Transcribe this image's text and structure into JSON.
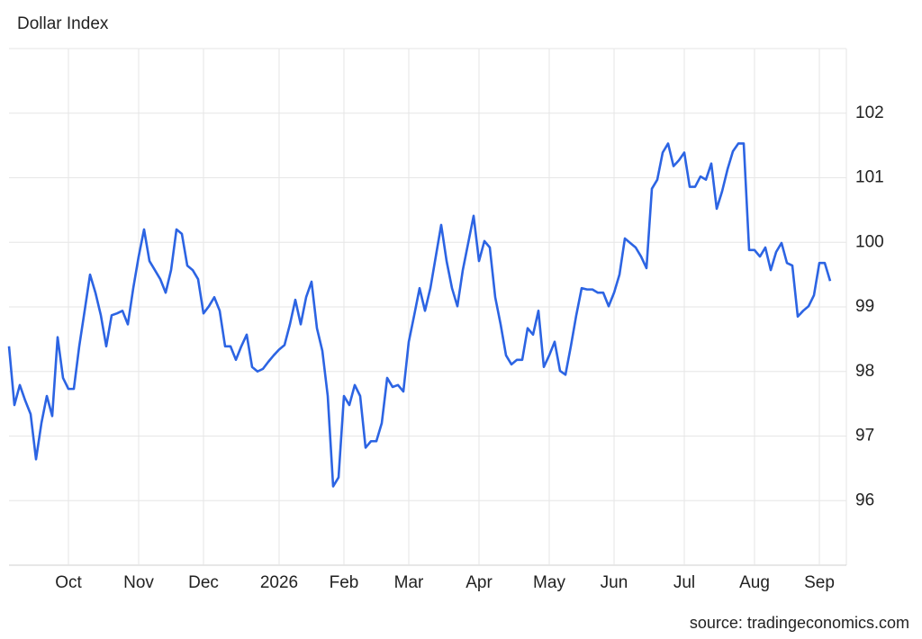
{
  "chart_data": {
    "type": "line",
    "title": "Dollar Index",
    "source": "source: tradingeconomics.com",
    "categories": [
      null,
      null,
      null,
      null,
      null,
      null,
      null,
      null,
      null,
      null,
      null,
      "Oct",
      null,
      null,
      null,
      null,
      null,
      null,
      null,
      null,
      null,
      null,
      null,
      null,
      "Nov",
      null,
      null,
      null,
      null,
      null,
      null,
      null,
      null,
      null,
      null,
      null,
      "Dec",
      null,
      null,
      null,
      null,
      null,
      null,
      null,
      null,
      null,
      null,
      null,
      null,
      null,
      "2026",
      null,
      null,
      null,
      null,
      null,
      null,
      null,
      null,
      null,
      null,
      null,
      "Feb",
      null,
      null,
      null,
      null,
      null,
      null,
      null,
      null,
      null,
      null,
      null,
      "Mar",
      null,
      null,
      null,
      null,
      null,
      null,
      null,
      null,
      null,
      null,
      null,
      null,
      "Apr",
      null,
      null,
      null,
      null,
      null,
      null,
      null,
      null,
      null,
      null,
      null,
      null,
      "May",
      null,
      null,
      null,
      null,
      null,
      null,
      null,
      null,
      null,
      null,
      null,
      "Jun",
      null,
      null,
      null,
      null,
      null,
      null,
      null,
      null,
      null,
      null,
      null,
      null,
      "Jul",
      null,
      null,
      null,
      null,
      null,
      null,
      null,
      null,
      null,
      null,
      null,
      null,
      "Aug",
      null,
      null,
      null,
      null,
      null,
      null,
      null,
      null,
      null,
      null,
      null,
      "Sep",
      null,
      null
    ],
    "series": [
      {
        "name": "Dollar Index",
        "color": "#2c64e3",
        "values": [
          98.39,
          97.48,
          97.79,
          97.55,
          97.34,
          96.64,
          97.2,
          97.62,
          97.31,
          98.53,
          97.9,
          97.73,
          97.73,
          98.39,
          98.94,
          99.5,
          99.22,
          98.87,
          98.39,
          98.87,
          98.9,
          98.94,
          98.73,
          99.29,
          99.78,
          100.2,
          99.71,
          99.57,
          99.43,
          99.22,
          99.57,
          100.2,
          100.13,
          99.64,
          99.57,
          99.43,
          98.9,
          99.01,
          99.15,
          98.94,
          98.39,
          98.39,
          98.18,
          98.39,
          98.57,
          98.07,
          98.0,
          98.04,
          98.15,
          98.25,
          98.34,
          98.41,
          98.73,
          99.11,
          98.73,
          99.15,
          99.39,
          98.67,
          98.32,
          97.62,
          96.22,
          96.36,
          97.62,
          97.48,
          97.79,
          97.62,
          96.82,
          96.92,
          96.92,
          97.2,
          97.9,
          97.76,
          97.79,
          97.69,
          98.46,
          98.87,
          99.29,
          98.94,
          99.29,
          99.78,
          100.27,
          99.71,
          99.29,
          99.01,
          99.57,
          99.99,
          100.41,
          99.71,
          100.02,
          99.92,
          99.15,
          98.73,
          98.25,
          98.11,
          98.18,
          98.18,
          98.67,
          98.57,
          98.94,
          98.07,
          98.25,
          98.46,
          98.01,
          97.95,
          98.39,
          98.87,
          99.29,
          99.27,
          99.27,
          99.22,
          99.22,
          99.01,
          99.22,
          99.5,
          100.06,
          99.99,
          99.92,
          99.78,
          99.6,
          100.83,
          100.97,
          101.39,
          101.53,
          101.18,
          101.27,
          101.39,
          100.86,
          100.86,
          101.02,
          100.97,
          101.22,
          100.52,
          100.79,
          101.13,
          101.41,
          101.53,
          101.53,
          99.88,
          99.88,
          99.78,
          99.92,
          99.57,
          99.85,
          99.99,
          99.68,
          99.64,
          98.85,
          98.94,
          99.01,
          99.18,
          99.68,
          99.68,
          99.4
        ]
      }
    ],
    "ylim": [
      95,
      103
    ],
    "yticks": [
      96,
      97,
      98,
      99,
      100,
      101,
      102
    ],
    "grid": true
  }
}
